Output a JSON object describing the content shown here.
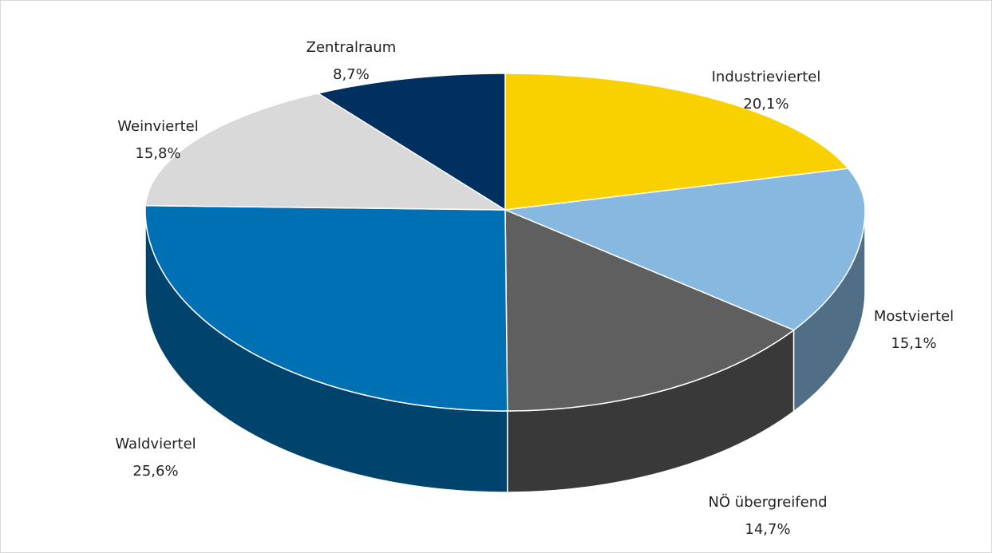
{
  "chart_data": {
    "type": "pie3d",
    "categories": [
      "Industrieviertel",
      "Mostviertel",
      "NÖ übergreifend",
      "Waldviertel",
      "Weinviertel",
      "Zentralraum"
    ],
    "values": [
      20.1,
      15.1,
      14.7,
      25.6,
      15.8,
      8.7
    ],
    "value_labels": [
      "20,1%",
      "15,1%",
      "14,7%",
      "25,6%",
      "15,8%",
      "8,7%"
    ],
    "colors": [
      "#f9d100",
      "#86b8e0",
      "#5f5f5f",
      "#0070b5",
      "#d9d9d9",
      "#003060"
    ]
  }
}
